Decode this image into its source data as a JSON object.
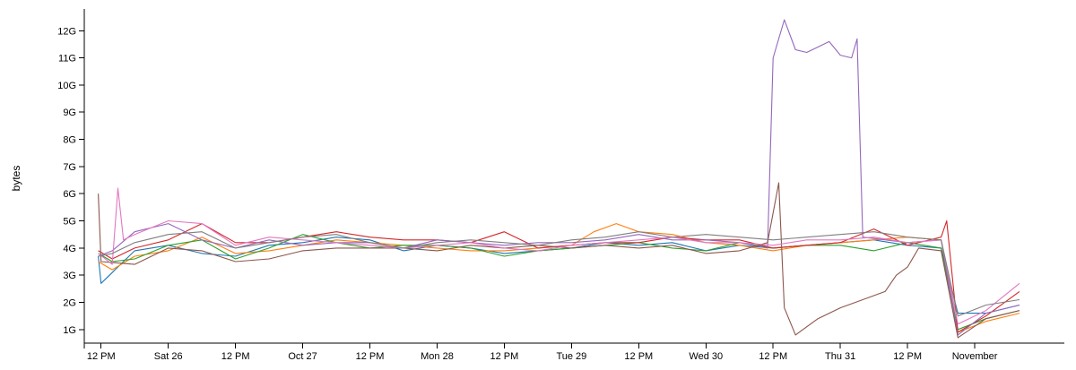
{
  "chart_data": {
    "type": "line",
    "ylabel": "bytes",
    "xlabel": "",
    "title": "",
    "y_unit": "G",
    "ylim": [
      0.5,
      12.8
    ],
    "y_ticks": [
      {
        "value": 1,
        "label": "1G"
      },
      {
        "value": 2,
        "label": "2G"
      },
      {
        "value": 3,
        "label": "3G"
      },
      {
        "value": 4,
        "label": "4G"
      },
      {
        "value": 5,
        "label": "5G"
      },
      {
        "value": 6,
        "label": "6G"
      },
      {
        "value": 7,
        "label": "7G"
      },
      {
        "value": 8,
        "label": "8G"
      },
      {
        "value": 9,
        "label": "9G"
      },
      {
        "value": 10,
        "label": "10G"
      },
      {
        "value": 11,
        "label": "11G"
      },
      {
        "value": 12,
        "label": "12G"
      }
    ],
    "xlim": [
      "Oct 25 09:00",
      "Nov 1 16:00"
    ],
    "x_ticks": [
      {
        "value": 12,
        "label": "12 PM"
      },
      {
        "value": 24,
        "label": "Sat 26"
      },
      {
        "value": 36,
        "label": "12 PM"
      },
      {
        "value": 48,
        "label": "Oct 27"
      },
      {
        "value": 60,
        "label": "12 PM"
      },
      {
        "value": 72,
        "label": "Mon 28"
      },
      {
        "value": 84,
        "label": "12 PM"
      },
      {
        "value": 96,
        "label": "Tue 29"
      },
      {
        "value": 108,
        "label": "12 PM"
      },
      {
        "value": 120,
        "label": "Wed 30"
      },
      {
        "value": 132,
        "label": "12 PM"
      },
      {
        "value": 144,
        "label": "Thu 31"
      },
      {
        "value": 156,
        "label": "12 PM"
      },
      {
        "value": 168,
        "label": "November"
      }
    ],
    "x_values_note_unit": "hours since Oct 25 00:00",
    "series": [
      {
        "color": "#1f77b4",
        "points": [
          [
            11.5,
            3.7
          ],
          [
            12,
            2.7
          ],
          [
            18,
            3.9
          ],
          [
            24,
            4.1
          ],
          [
            30,
            3.8
          ],
          [
            36,
            3.7
          ],
          [
            42,
            4.1
          ],
          [
            48,
            4.2
          ],
          [
            54,
            4.4
          ],
          [
            60,
            4.3
          ],
          [
            66,
            3.9
          ],
          [
            72,
            4.1
          ],
          [
            78,
            4.0
          ],
          [
            84,
            3.8
          ],
          [
            90,
            3.9
          ],
          [
            96,
            4.0
          ],
          [
            102,
            4.2
          ],
          [
            108,
            4.1
          ],
          [
            114,
            4.2
          ],
          [
            120,
            3.9
          ],
          [
            126,
            4.1
          ],
          [
            132,
            4.0
          ],
          [
            138,
            4.1
          ],
          [
            144,
            4.2
          ],
          [
            150,
            4.3
          ],
          [
            156,
            4.1
          ],
          [
            162,
            4.0
          ],
          [
            165,
            1.6
          ],
          [
            170,
            1.6
          ],
          [
            176,
            1.9
          ]
        ]
      },
      {
        "color": "#ff7f0e",
        "points": [
          [
            11.5,
            3.5
          ],
          [
            14,
            3.2
          ],
          [
            18,
            3.7
          ],
          [
            24,
            3.9
          ],
          [
            30,
            4.4
          ],
          [
            36,
            3.8
          ],
          [
            42,
            3.9
          ],
          [
            48,
            4.1
          ],
          [
            54,
            4.3
          ],
          [
            60,
            4.2
          ],
          [
            66,
            4.1
          ],
          [
            72,
            4.0
          ],
          [
            78,
            3.9
          ],
          [
            84,
            3.9
          ],
          [
            90,
            4.0
          ],
          [
            96,
            4.1
          ],
          [
            100,
            4.6
          ],
          [
            104,
            4.9
          ],
          [
            108,
            4.6
          ],
          [
            114,
            4.5
          ],
          [
            120,
            4.2
          ],
          [
            126,
            4.1
          ],
          [
            132,
            3.9
          ],
          [
            138,
            4.1
          ],
          [
            144,
            4.2
          ],
          [
            150,
            4.3
          ],
          [
            156,
            4.4
          ],
          [
            162,
            4.3
          ],
          [
            165,
            0.9
          ],
          [
            170,
            1.3
          ],
          [
            176,
            1.6
          ]
        ]
      },
      {
        "color": "#2ca02c",
        "points": [
          [
            11.5,
            3.8
          ],
          [
            14,
            3.5
          ],
          [
            18,
            3.6
          ],
          [
            24,
            4.1
          ],
          [
            30,
            4.3
          ],
          [
            36,
            3.6
          ],
          [
            42,
            4.0
          ],
          [
            48,
            4.5
          ],
          [
            54,
            4.2
          ],
          [
            60,
            4.0
          ],
          [
            66,
            4.1
          ],
          [
            72,
            4.1
          ],
          [
            78,
            4.0
          ],
          [
            84,
            3.7
          ],
          [
            90,
            3.9
          ],
          [
            96,
            4.0
          ],
          [
            102,
            4.1
          ],
          [
            108,
            4.2
          ],
          [
            114,
            4.0
          ],
          [
            120,
            3.9
          ],
          [
            126,
            4.2
          ],
          [
            132,
            4.0
          ],
          [
            138,
            4.1
          ],
          [
            144,
            4.1
          ],
          [
            150,
            3.9
          ],
          [
            156,
            4.2
          ],
          [
            162,
            4.0
          ],
          [
            165,
            1.0
          ],
          [
            170,
            1.4
          ],
          [
            176,
            1.7
          ]
        ]
      },
      {
        "color": "#d62728",
        "points": [
          [
            11.5,
            3.9
          ],
          [
            14,
            3.6
          ],
          [
            18,
            4.0
          ],
          [
            24,
            4.3
          ],
          [
            30,
            4.9
          ],
          [
            36,
            4.2
          ],
          [
            42,
            4.2
          ],
          [
            48,
            4.4
          ],
          [
            54,
            4.6
          ],
          [
            60,
            4.4
          ],
          [
            66,
            4.3
          ],
          [
            72,
            4.3
          ],
          [
            78,
            4.2
          ],
          [
            84,
            4.6
          ],
          [
            90,
            4.0
          ],
          [
            96,
            4.1
          ],
          [
            102,
            4.2
          ],
          [
            108,
            4.2
          ],
          [
            114,
            4.4
          ],
          [
            120,
            4.3
          ],
          [
            126,
            4.3
          ],
          [
            132,
            4.0
          ],
          [
            138,
            4.1
          ],
          [
            144,
            4.2
          ],
          [
            150,
            4.7
          ],
          [
            156,
            4.1
          ],
          [
            162,
            4.4
          ],
          [
            163,
            5.0
          ],
          [
            165,
            0.9
          ],
          [
            170,
            1.5
          ],
          [
            176,
            2.4
          ]
        ]
      },
      {
        "color": "#9467bd",
        "points": [
          [
            11.5,
            3.7
          ],
          [
            14,
            3.9
          ],
          [
            18,
            4.6
          ],
          [
            24,
            4.9
          ],
          [
            30,
            4.3
          ],
          [
            36,
            4.0
          ],
          [
            42,
            4.3
          ],
          [
            48,
            4.1
          ],
          [
            54,
            4.2
          ],
          [
            60,
            4.2
          ],
          [
            66,
            4.0
          ],
          [
            72,
            4.3
          ],
          [
            78,
            4.2
          ],
          [
            84,
            4.1
          ],
          [
            90,
            4.2
          ],
          [
            96,
            4.2
          ],
          [
            102,
            4.3
          ],
          [
            108,
            4.5
          ],
          [
            114,
            4.3
          ],
          [
            120,
            4.3
          ],
          [
            126,
            4.2
          ],
          [
            131,
            4.0
          ],
          [
            132,
            11.0
          ],
          [
            134,
            12.4
          ],
          [
            136,
            11.3
          ],
          [
            138,
            11.2
          ],
          [
            140,
            11.4
          ],
          [
            142,
            11.6
          ],
          [
            144,
            11.1
          ],
          [
            146,
            11.0
          ],
          [
            147,
            11.7
          ],
          [
            148,
            4.4
          ],
          [
            156,
            4.2
          ],
          [
            162,
            4.3
          ],
          [
            165,
            0.8
          ],
          [
            170,
            1.6
          ],
          [
            176,
            1.9
          ]
        ]
      },
      {
        "color": "#8c564b",
        "points": [
          [
            11.5,
            6.0
          ],
          [
            12,
            3.5
          ],
          [
            18,
            3.4
          ],
          [
            24,
            4.0
          ],
          [
            30,
            3.9
          ],
          [
            36,
            3.5
          ],
          [
            42,
            3.6
          ],
          [
            48,
            3.9
          ],
          [
            54,
            4.0
          ],
          [
            60,
            4.0
          ],
          [
            66,
            4.0
          ],
          [
            72,
            3.9
          ],
          [
            78,
            4.1
          ],
          [
            84,
            4.0
          ],
          [
            90,
            4.1
          ],
          [
            96,
            4.0
          ],
          [
            102,
            4.1
          ],
          [
            108,
            4.0
          ],
          [
            114,
            4.1
          ],
          [
            120,
            3.8
          ],
          [
            126,
            3.9
          ],
          [
            131,
            4.2
          ],
          [
            133,
            6.4
          ],
          [
            134,
            1.8
          ],
          [
            136,
            0.8
          ],
          [
            140,
            1.4
          ],
          [
            144,
            1.8
          ],
          [
            148,
            2.1
          ],
          [
            152,
            2.4
          ],
          [
            154,
            3.0
          ],
          [
            156,
            3.3
          ],
          [
            158,
            4.0
          ],
          [
            162,
            3.9
          ],
          [
            165,
            0.7
          ],
          [
            170,
            1.4
          ],
          [
            176,
            1.7
          ]
        ]
      },
      {
        "color": "#e377c2",
        "points": [
          [
            11.5,
            3.8
          ],
          [
            14,
            3.4
          ],
          [
            15,
            6.2
          ],
          [
            16,
            4.3
          ],
          [
            18,
            4.5
          ],
          [
            24,
            5.0
          ],
          [
            30,
            4.9
          ],
          [
            36,
            4.1
          ],
          [
            42,
            4.4
          ],
          [
            48,
            4.3
          ],
          [
            54,
            4.2
          ],
          [
            60,
            4.1
          ],
          [
            66,
            4.0
          ],
          [
            72,
            4.1
          ],
          [
            78,
            4.2
          ],
          [
            84,
            4.0
          ],
          [
            90,
            3.9
          ],
          [
            96,
            4.1
          ],
          [
            102,
            4.2
          ],
          [
            108,
            4.3
          ],
          [
            114,
            4.4
          ],
          [
            120,
            4.2
          ],
          [
            126,
            4.2
          ],
          [
            132,
            4.1
          ],
          [
            138,
            4.3
          ],
          [
            144,
            4.3
          ],
          [
            150,
            4.4
          ],
          [
            156,
            4.2
          ],
          [
            162,
            4.3
          ],
          [
            165,
            1.2
          ],
          [
            170,
            1.7
          ],
          [
            176,
            2.7
          ]
        ]
      },
      {
        "color": "#7f7f7f",
        "points": [
          [
            11.5,
            3.7
          ],
          [
            14,
            3.8
          ],
          [
            18,
            4.2
          ],
          [
            24,
            4.5
          ],
          [
            30,
            4.6
          ],
          [
            36,
            4.0
          ],
          [
            42,
            4.2
          ],
          [
            48,
            4.4
          ],
          [
            54,
            4.5
          ],
          [
            60,
            4.2
          ],
          [
            66,
            4.0
          ],
          [
            72,
            4.2
          ],
          [
            78,
            4.3
          ],
          [
            84,
            4.2
          ],
          [
            90,
            4.1
          ],
          [
            96,
            4.3
          ],
          [
            102,
            4.4
          ],
          [
            108,
            4.6
          ],
          [
            114,
            4.4
          ],
          [
            120,
            4.5
          ],
          [
            126,
            4.4
          ],
          [
            132,
            4.3
          ],
          [
            138,
            4.4
          ],
          [
            144,
            4.5
          ],
          [
            150,
            4.6
          ],
          [
            156,
            4.4
          ],
          [
            162,
            4.3
          ],
          [
            165,
            1.5
          ],
          [
            170,
            1.9
          ],
          [
            176,
            2.1
          ]
        ]
      }
    ]
  }
}
